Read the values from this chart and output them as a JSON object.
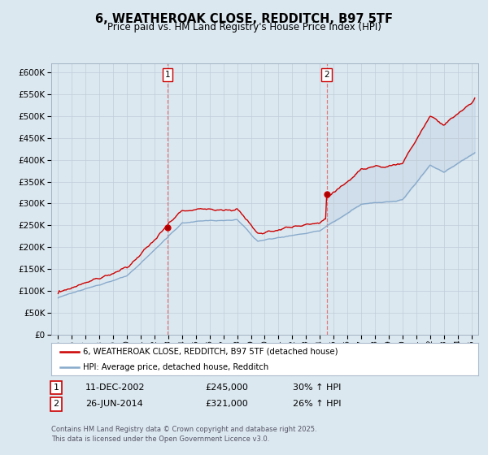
{
  "title": "6, WEATHEROAK CLOSE, REDDITCH, B97 5TF",
  "subtitle": "Price paid vs. HM Land Registry's House Price Index (HPI)",
  "legend_line1": "6, WEATHEROAK CLOSE, REDDITCH, B97 5TF (detached house)",
  "legend_line2": "HPI: Average price, detached house, Redditch",
  "annotation1_date": "11-DEC-2002",
  "annotation1_price": "£245,000",
  "annotation1_hpi": "30% ↑ HPI",
  "annotation2_date": "26-JUN-2014",
  "annotation2_price": "£321,000",
  "annotation2_hpi": "26% ↑ HPI",
  "footnote": "Contains HM Land Registry data © Crown copyright and database right 2025.\nThis data is licensed under the Open Government Licence v3.0.",
  "red_color": "#cc0000",
  "blue_color": "#88aacc",
  "dashed_color": "#dd6666",
  "background_color": "#dce8f0",
  "plot_bg_color": "#dce8f0",
  "ylim": [
    0,
    620000
  ],
  "yticks": [
    0,
    50000,
    100000,
    150000,
    200000,
    250000,
    300000,
    350000,
    400000,
    450000,
    500000,
    550000,
    600000
  ],
  "sale1_year": 2002.94,
  "sale1_price": 245000,
  "sale2_year": 2014.49,
  "sale2_price": 321000,
  "xmin": 1994.5,
  "xmax": 2025.5
}
